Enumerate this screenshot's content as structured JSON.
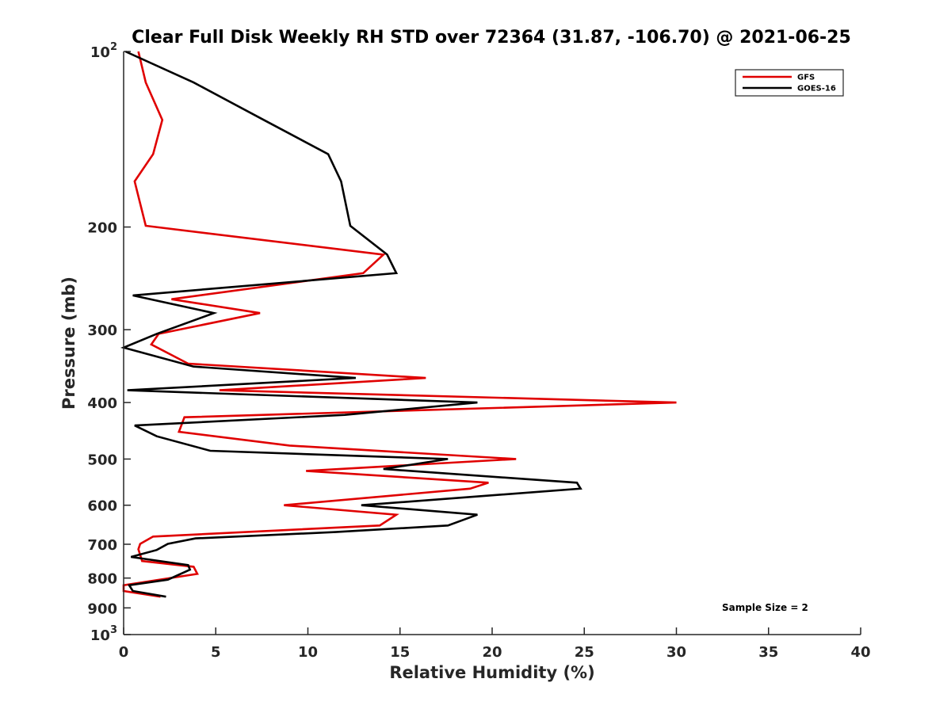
{
  "chart_data": {
    "type": "line",
    "title": "Clear Full Disk Weekly RH STD over 72364 (31.87, -106.70) @ 2021-06-25",
    "xlabel": "Relative Humidity (%)",
    "ylabel": "Pressure (mb)",
    "xlim": [
      0,
      40
    ],
    "ylim": [
      100,
      1000
    ],
    "yscale": "log",
    "y_reversed": true,
    "xticks": [
      "0",
      "5",
      "10",
      "15",
      "20",
      "25",
      "30",
      "35",
      "40"
    ],
    "yticks": [
      {
        "value": 100,
        "base": "10",
        "exp": "2"
      },
      {
        "value": 200,
        "label": "200"
      },
      {
        "value": 300,
        "label": "300"
      },
      {
        "value": 400,
        "label": "400"
      },
      {
        "value": 500,
        "label": "500"
      },
      {
        "value": 600,
        "label": "600"
      },
      {
        "value": 700,
        "label": "700"
      },
      {
        "value": 800,
        "label": "800"
      },
      {
        "value": 900,
        "label": "900"
      },
      {
        "value": 1000,
        "base": "10",
        "exp": "3"
      }
    ],
    "grid": false,
    "legend_position": "top-right",
    "annotation": "Sample Size = 2",
    "series": [
      {
        "name": "GFS",
        "color": "#e00000",
        "x": [
          0.8,
          1.2,
          2.1,
          1.6,
          0.6,
          1.2,
          14.1,
          13.0,
          2.6,
          7.4,
          1.9,
          1.5,
          3.5,
          16.4,
          5.2,
          30.0,
          3.3,
          3.0,
          9.0,
          21.3,
          9.9,
          19.8,
          18.8,
          8.7,
          14.8,
          13.9,
          1.6,
          0.9,
          0.8,
          1.0,
          3.8,
          4.0,
          0.0,
          0.0,
          2.0
        ],
        "y": [
          100,
          113,
          131,
          150,
          167,
          199,
          223,
          240,
          266,
          281,
          305,
          318,
          343,
          363,
          381,
          400,
          424,
          449,
          474,
          500,
          524,
          549,
          562,
          600,
          623,
          650,
          679,
          699,
          714,
          748,
          765,
          787,
          823,
          842,
          861
        ]
      },
      {
        "name": "GOES-16",
        "color": "#000000",
        "x": [
          0.1,
          3.8,
          7.6,
          11.1,
          11.8,
          12.3,
          14.3,
          14.8,
          0.5,
          4.9,
          1.8,
          0.0,
          3.8,
          12.6,
          0.2,
          19.2,
          12.0,
          0.6,
          1.8,
          4.7,
          17.6,
          14.1,
          24.6,
          24.8,
          12.9,
          19.2,
          17.6,
          11.5,
          3.9,
          2.4,
          1.8,
          0.4,
          3.5,
          3.6,
          2.4,
          0.3,
          0.5,
          2.3
        ],
        "y": [
          100,
          113,
          131,
          150,
          167,
          199,
          223,
          240,
          262,
          281,
          305,
          322,
          347,
          363,
          381,
          400,
          420,
          438,
          457,
          484,
          500,
          520,
          549,
          562,
          600,
          623,
          650,
          667,
          684,
          699,
          716,
          736,
          760,
          774,
          805,
          823,
          842,
          861
        ]
      }
    ]
  }
}
